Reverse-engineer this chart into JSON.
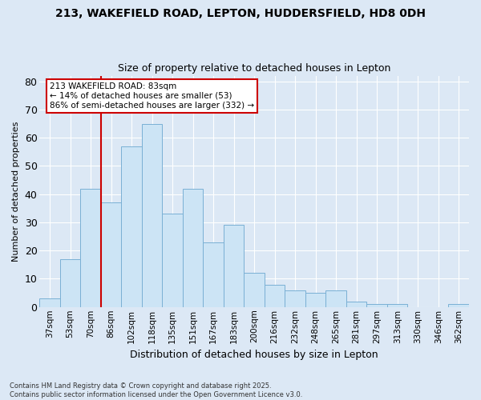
{
  "title1": "213, WAKEFIELD ROAD, LEPTON, HUDDERSFIELD, HD8 0DH",
  "title2": "Size of property relative to detached houses in Lepton",
  "xlabel": "Distribution of detached houses by size in Lepton",
  "ylabel": "Number of detached properties",
  "categories": [
    "37sqm",
    "53sqm",
    "70sqm",
    "86sqm",
    "102sqm",
    "118sqm",
    "135sqm",
    "151sqm",
    "167sqm",
    "183sqm",
    "200sqm",
    "216sqm",
    "232sqm",
    "248sqm",
    "265sqm",
    "281sqm",
    "297sqm",
    "313sqm",
    "330sqm",
    "346sqm",
    "362sqm"
  ],
  "values": [
    3,
    17,
    42,
    37,
    57,
    65,
    33,
    42,
    23,
    29,
    12,
    8,
    6,
    5,
    6,
    2,
    1,
    1,
    0,
    0,
    1
  ],
  "bar_color": "#cce4f5",
  "bar_edge_color": "#7ab0d4",
  "background_color": "#dce8f5",
  "grid_color": "#ffffff",
  "vline_color": "#cc0000",
  "annotation_text": "213 WAKEFIELD ROAD: 83sqm\n← 14% of detached houses are smaller (53)\n86% of semi-detached houses are larger (332) →",
  "annotation_box_color": "#ffffff",
  "annotation_box_edge": "#cc0000",
  "ylim": [
    0,
    82
  ],
  "yticks": [
    0,
    10,
    20,
    30,
    40,
    50,
    60,
    70,
    80
  ],
  "footnote": "Contains HM Land Registry data © Crown copyright and database right 2025.\nContains public sector information licensed under the Open Government Licence v3.0."
}
